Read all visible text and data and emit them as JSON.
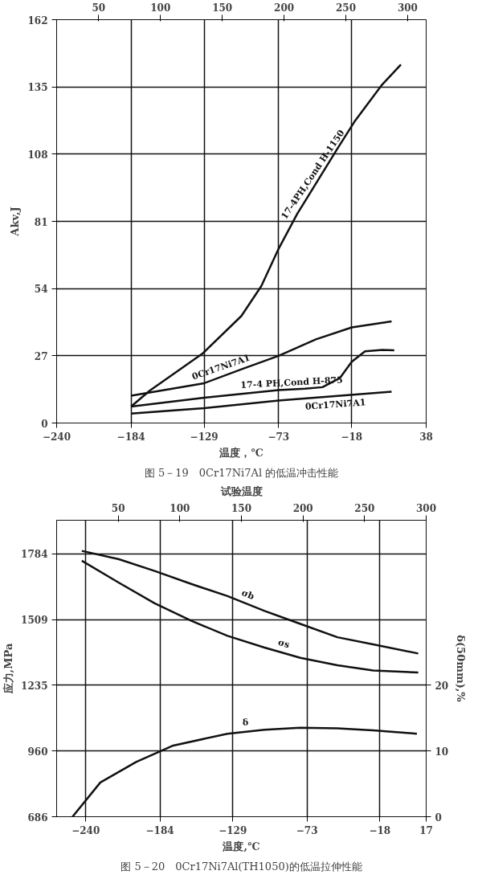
{
  "chart_data": [
    {
      "type": "line",
      "xlabel": "温度，℃",
      "ylabel": "Akv,J",
      "annotations": [
        "图 5－19　0Cr17Ni7Al 的低温冲击性能"
      ],
      "xlim": [
        -240,
        38
      ],
      "xticks": [
        -240,
        -184,
        -129,
        -73,
        -18,
        38
      ],
      "x2lim": [
        16,
        315
      ],
      "x2ticks": [
        50,
        100,
        150,
        200,
        250,
        300
      ],
      "ylim": [
        0,
        162
      ],
      "yticks": [
        0,
        27,
        54,
        81,
        108,
        135,
        162
      ],
      "grid": true,
      "legend": false,
      "line_style": "solid",
      "marker": "none",
      "series": [
        {
          "name": "17-4PH,Cond H-1150",
          "color": "#111111",
          "x": [
            -184,
            -170,
            -130,
            -101,
            -86,
            -73,
            -59,
            -29,
            -16,
            5,
            19
          ],
          "values": [
            6.6,
            13,
            28,
            43,
            55,
            70,
            84,
            110,
            121,
            136,
            144
          ]
        },
        {
          "name": "0Cr17Ni7A1",
          "color": "#111111",
          "x": [
            -184,
            -129,
            -101,
            -73,
            -45,
            -18,
            12
          ],
          "values": [
            11,
            16,
            21.6,
            27,
            33.6,
            38.4,
            40.8
          ]
        },
        {
          "name": "17-4 PH,Cond H-875",
          "color": "#111111",
          "x": [
            -184,
            -129,
            -73,
            -53,
            -40,
            -27,
            -18,
            -8,
            5,
            14
          ],
          "values": [
            6.6,
            10.2,
            13.2,
            13.8,
            14.4,
            18,
            24.6,
            28.8,
            29.4,
            29.2
          ]
        },
        {
          "name": "0Cr17Ni7A1",
          "color": "#111111",
          "x": [
            -184,
            -129,
            -73,
            12
          ],
          "values": [
            3.8,
            6,
            9,
            12.6
          ]
        }
      ]
    },
    {
      "type": "line",
      "xlabel": "温度,℃",
      "x2label": "试验温度",
      "ylabel": "应力,MPa",
      "y2label": "δ(50mm),%",
      "annotations": [
        "图 5－20　0Cr17Ni7Al(TH1050)的低温拉伸性能"
      ],
      "xlim": [
        -262,
        17
      ],
      "xticks": [
        -240,
        -184,
        -129,
        -73,
        -18,
        17
      ],
      "x2lim": [
        0,
        300
      ],
      "x2ticks": [
        50,
        100,
        150,
        200,
        250,
        300
      ],
      "ylim": [
        686,
        1925
      ],
      "yticks": [
        686,
        960,
        1235,
        1509,
        1784
      ],
      "y2lim": [
        0,
        45
      ],
      "y2ticks": [
        0,
        10,
        20
      ],
      "grid": true,
      "legend": false,
      "line_style": "solid",
      "marker": "none",
      "series": [
        {
          "name": "σb",
          "color": "#111111",
          "x": [
            -243,
            -215,
            -188,
            -160,
            -133,
            -105,
            -78,
            -50,
            -23,
            11
          ],
          "values": [
            1797,
            1762,
            1713,
            1658,
            1608,
            1546,
            1492,
            1436,
            1406,
            1368
          ]
        },
        {
          "name": "σs",
          "color": "#111111",
          "x": [
            -243,
            -215,
            -188,
            -160,
            -133,
            -105,
            -78,
            -50,
            -23,
            11
          ],
          "values": [
            1756,
            1664,
            1578,
            1504,
            1442,
            1393,
            1350,
            1319,
            1297,
            1289
          ]
        },
        {
          "name": "δ",
          "color": "#111111",
          "axis": "y2",
          "x": [
            -250,
            -229,
            -202,
            -174,
            -133,
            -105,
            -78,
            -50,
            -23,
            10
          ],
          "values": [
            0,
            5.2,
            8.3,
            10.8,
            12.6,
            13.2,
            13.5,
            13.4,
            13.1,
            12.6
          ]
        }
      ]
    }
  ]
}
